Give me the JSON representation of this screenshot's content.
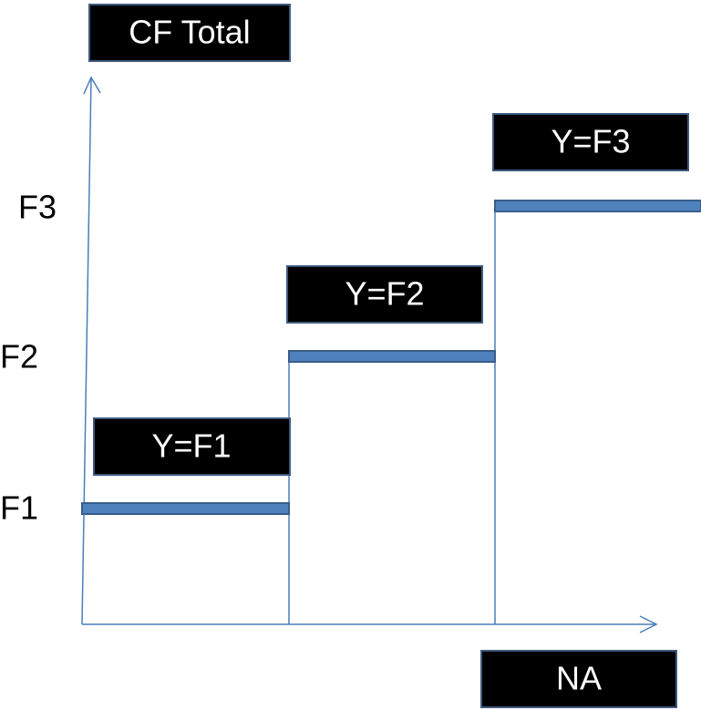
{
  "axes": {
    "y_label": "CF Total",
    "x_label": "NA"
  },
  "levels": [
    "F1",
    "F2",
    "F3"
  ],
  "steps": [
    "Y=F1",
    "Y=F2",
    "Y=F3"
  ]
}
